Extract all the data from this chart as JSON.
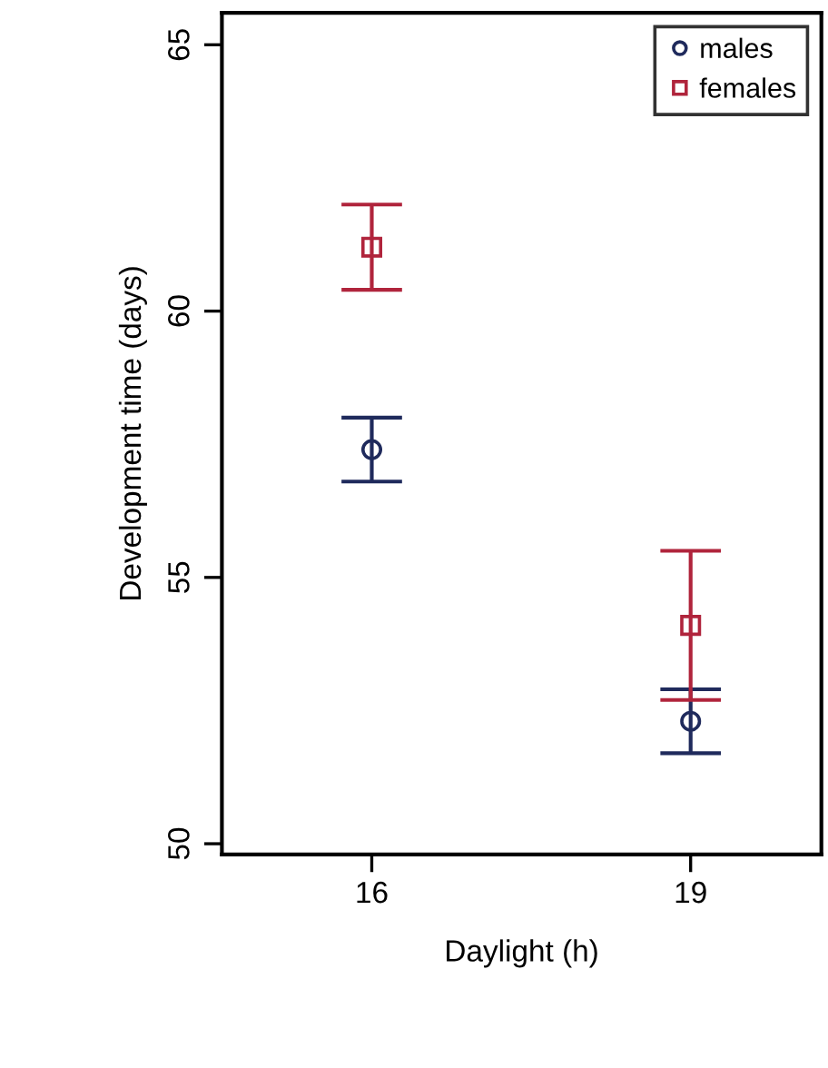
{
  "chart_data": {
    "type": "scatter",
    "xlabel": "Daylight (h)",
    "ylabel": "Development time (days)",
    "categories": [
      "16",
      "19"
    ],
    "series": [
      {
        "name": "males",
        "color": "#1f2a5c",
        "marker": "circle",
        "values": [
          57.4,
          52.3
        ],
        "errors": [
          0.6,
          0.6
        ]
      },
      {
        "name": "females",
        "color": "#b0243c",
        "marker": "square",
        "values": [
          61.2,
          54.1
        ],
        "errors": [
          0.8,
          1.4
        ]
      }
    ],
    "ylim": [
      49.8,
      65.6
    ],
    "yticks": [
      50,
      55,
      60,
      65
    ],
    "grid": false,
    "legend": "top right"
  }
}
